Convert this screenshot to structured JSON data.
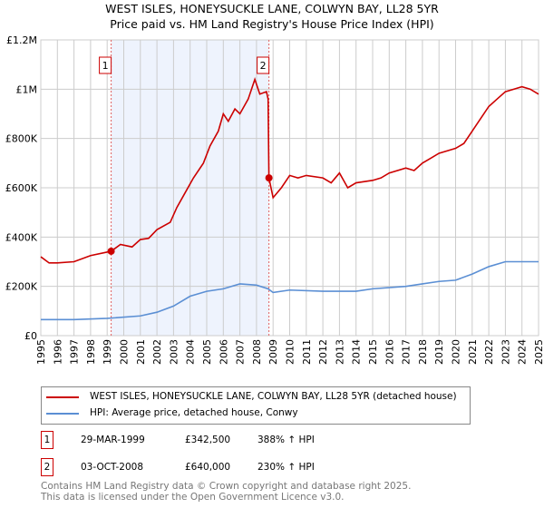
{
  "chart_data": {
    "type": "line",
    "title": "WEST ISLES, HONEYSUCKLE LANE, COLWYN BAY, LL28 5YR",
    "subtitle": "Price paid vs. HM Land Registry's House Price Index (HPI)",
    "xlim": [
      1995,
      2025
    ],
    "ylim": [
      0,
      1200000
    ],
    "y_ticks": [
      {
        "v": 0,
        "label": "£0"
      },
      {
        "v": 200000,
        "label": "£200K"
      },
      {
        "v": 400000,
        "label": "£400K"
      },
      {
        "v": 600000,
        "label": "£600K"
      },
      {
        "v": 800000,
        "label": "£800K"
      },
      {
        "v": 1000000,
        "label": "£1M"
      },
      {
        "v": 1200000,
        "label": "£1.2M"
      }
    ],
    "x_ticks": [
      "1995",
      "1996",
      "1997",
      "1998",
      "1999",
      "2000",
      "2001",
      "2002",
      "2003",
      "2004",
      "2005",
      "2006",
      "2007",
      "2008",
      "2009",
      "2010",
      "2011",
      "2012",
      "2013",
      "2014",
      "2015",
      "2016",
      "2017",
      "2018",
      "2019",
      "2020",
      "2021",
      "2022",
      "2023",
      "2024",
      "2025"
    ],
    "grid": true,
    "shaded_range": [
      1999.24,
      2008.75
    ],
    "series": [
      {
        "name": "WEST ISLES, HONEYSUCKLE LANE, COLWYN BAY, LL28 5YR (detached house)",
        "color": "#cc0000",
        "x": [
          1995,
          1995.5,
          1996,
          1997,
          1998,
          1999.24,
          1999.8,
          2000.5,
          2001,
          2001.5,
          2002,
          2002.8,
          2003.2,
          2003.7,
          2004.2,
          2004.8,
          2005.2,
          2005.7,
          2006,
          2006.3,
          2006.7,
          2007,
          2007.5,
          2007.9,
          2008.2,
          2008.6,
          2008.7,
          2008.75,
          2009,
          2009.5,
          2010,
          2010.5,
          2011,
          2012,
          2012.5,
          2013,
          2013.5,
          2014,
          2015,
          2015.5,
          2016,
          2017,
          2017.5,
          2018,
          2018.5,
          2019,
          2019.5,
          2020,
          2020.5,
          2021,
          2021.5,
          2022,
          2022.5,
          2023,
          2023.5,
          2024,
          2024.5,
          2025
        ],
        "y": [
          320000,
          295000,
          295000,
          300000,
          325000,
          342500,
          370000,
          360000,
          390000,
          395000,
          430000,
          460000,
          520000,
          580000,
          640000,
          700000,
          770000,
          830000,
          900000,
          870000,
          920000,
          900000,
          960000,
          1040000,
          980000,
          990000,
          960000,
          640000,
          560000,
          600000,
          650000,
          640000,
          650000,
          640000,
          620000,
          660000,
          600000,
          620000,
          630000,
          640000,
          660000,
          680000,
          670000,
          700000,
          720000,
          740000,
          750000,
          760000,
          780000,
          830000,
          880000,
          930000,
          960000,
          990000,
          1000000,
          1010000,
          1000000,
          980000
        ]
      },
      {
        "name": "HPI: Average price, detached house, Conwy",
        "color": "#5b8fd4",
        "x": [
          1995,
          1997,
          1999,
          2001,
          2002,
          2003,
          2004,
          2005,
          2006,
          2007,
          2008,
          2008.7,
          2009,
          2010,
          2012,
          2013,
          2014,
          2015,
          2017,
          2018,
          2019,
          2020,
          2021,
          2022,
          2023,
          2024,
          2025
        ],
        "y": [
          65000,
          65000,
          70000,
          80000,
          95000,
          120000,
          160000,
          180000,
          190000,
          210000,
          205000,
          190000,
          175000,
          185000,
          180000,
          180000,
          180000,
          190000,
          200000,
          210000,
          220000,
          225000,
          250000,
          280000,
          300000,
          300000,
          300000
        ]
      }
    ],
    "sales": [
      {
        "id": "1",
        "x": 1999.24,
        "price": 342500,
        "date": "29-MAR-1999",
        "price_label": "£342,500",
        "hpi": "388% ↑ HPI"
      },
      {
        "id": "2",
        "x": 2008.75,
        "price": 640000,
        "date": "03-OCT-2008",
        "price_label": "£640,000",
        "hpi": "230% ↑ HPI"
      }
    ]
  },
  "footer": {
    "line1": "Contains HM Land Registry data © Crown copyright and database right 2025.",
    "line2": "This data is licensed under the Open Government Licence v3.0."
  }
}
